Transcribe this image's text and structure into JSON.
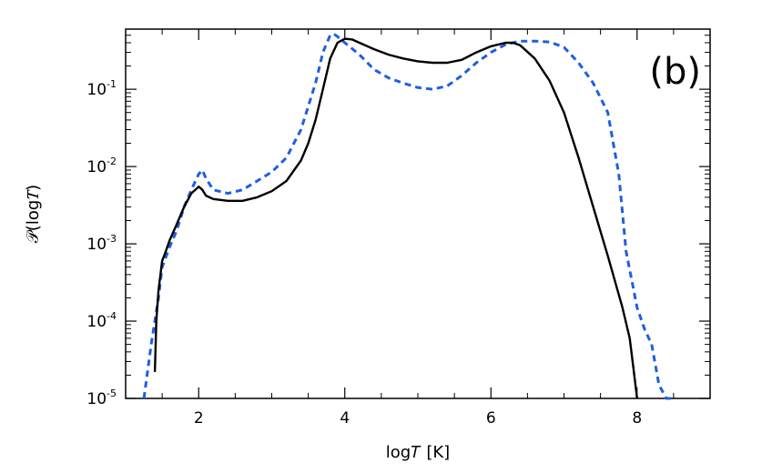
{
  "chart_data": {
    "type": "line",
    "panel_label": "(b)",
    "xlabel": "log𝑇 [K]",
    "ylabel": "𝒫(log𝑇)",
    "xlim": [
      1.0,
      9.0
    ],
    "ylim": [
      1e-05,
      0.6
    ],
    "y_scale": "log",
    "x_ticks": [
      2,
      4,
      6,
      8
    ],
    "x_tick_labels": [
      "2",
      "4",
      "6",
      "8"
    ],
    "y_ticks": [
      1e-05,
      0.0001,
      0.001,
      0.01,
      0.1
    ],
    "y_tick_labels": [
      {
        "base": "10",
        "exp": "-5"
      },
      {
        "base": "10",
        "exp": "-4"
      },
      {
        "base": "10",
        "exp": "-3"
      },
      {
        "base": "10",
        "exp": "-2"
      },
      {
        "base": "10",
        "exp": "-1"
      }
    ],
    "grid": false,
    "legend": "none",
    "series": [
      {
        "color": "#000000",
        "style": "solid",
        "x": [
          1.4,
          1.42,
          1.45,
          1.5,
          1.55,
          1.6,
          1.7,
          1.8,
          1.9,
          2.0,
          2.05,
          2.1,
          2.2,
          2.4,
          2.6,
          2.8,
          3.0,
          3.2,
          3.4,
          3.5,
          3.6,
          3.7,
          3.8,
          3.9,
          4.0,
          4.1,
          4.2,
          4.4,
          4.6,
          4.8,
          5.0,
          5.2,
          5.4,
          5.6,
          5.8,
          6.0,
          6.2,
          6.3,
          6.4,
          6.6,
          6.8,
          7.0,
          7.2,
          7.4,
          7.6,
          7.8,
          7.9,
          7.95,
          8.0
        ],
        "y": [
          2.2e-05,
          0.0001,
          0.00025,
          0.0006,
          0.0008,
          0.0011,
          0.0018,
          0.003,
          0.0045,
          0.0055,
          0.005,
          0.0042,
          0.0038,
          0.0036,
          0.0036,
          0.004,
          0.0048,
          0.0065,
          0.012,
          0.02,
          0.04,
          0.1,
          0.25,
          0.4,
          0.45,
          0.44,
          0.4,
          0.33,
          0.28,
          0.25,
          0.23,
          0.22,
          0.22,
          0.24,
          0.3,
          0.36,
          0.4,
          0.4,
          0.37,
          0.25,
          0.13,
          0.05,
          0.013,
          0.003,
          0.0007,
          0.00015,
          6e-05,
          2.5e-05,
          1e-05
        ]
      },
      {
        "color": "#1f5fe0",
        "style": "dashed",
        "x": [
          1.25,
          1.35,
          1.45,
          1.5,
          1.6,
          1.7,
          1.8,
          1.9,
          2.0,
          2.05,
          2.1,
          2.2,
          2.4,
          2.6,
          2.8,
          3.0,
          3.2,
          3.4,
          3.6,
          3.7,
          3.8,
          3.85,
          3.9,
          4.0,
          4.2,
          4.4,
          4.6,
          4.8,
          5.0,
          5.2,
          5.4,
          5.6,
          5.8,
          6.0,
          6.2,
          6.4,
          6.6,
          6.8,
          7.0,
          7.2,
          7.4,
          7.6,
          7.75,
          7.85,
          8.0,
          8.1,
          8.2,
          8.3,
          8.4,
          8.5
        ],
        "y": [
          1e-05,
          5e-05,
          0.0002,
          0.0005,
          0.0009,
          0.0015,
          0.003,
          0.005,
          0.008,
          0.009,
          0.007,
          0.005,
          0.0045,
          0.005,
          0.0065,
          0.0085,
          0.013,
          0.03,
          0.12,
          0.3,
          0.5,
          0.52,
          0.48,
          0.4,
          0.28,
          0.18,
          0.14,
          0.12,
          0.105,
          0.1,
          0.11,
          0.15,
          0.22,
          0.3,
          0.38,
          0.42,
          0.42,
          0.41,
          0.35,
          0.22,
          0.12,
          0.05,
          0.008,
          0.0008,
          0.00015,
          8e-05,
          5e-05,
          1.5e-05,
          1e-05,
          1e-05
        ]
      }
    ]
  }
}
